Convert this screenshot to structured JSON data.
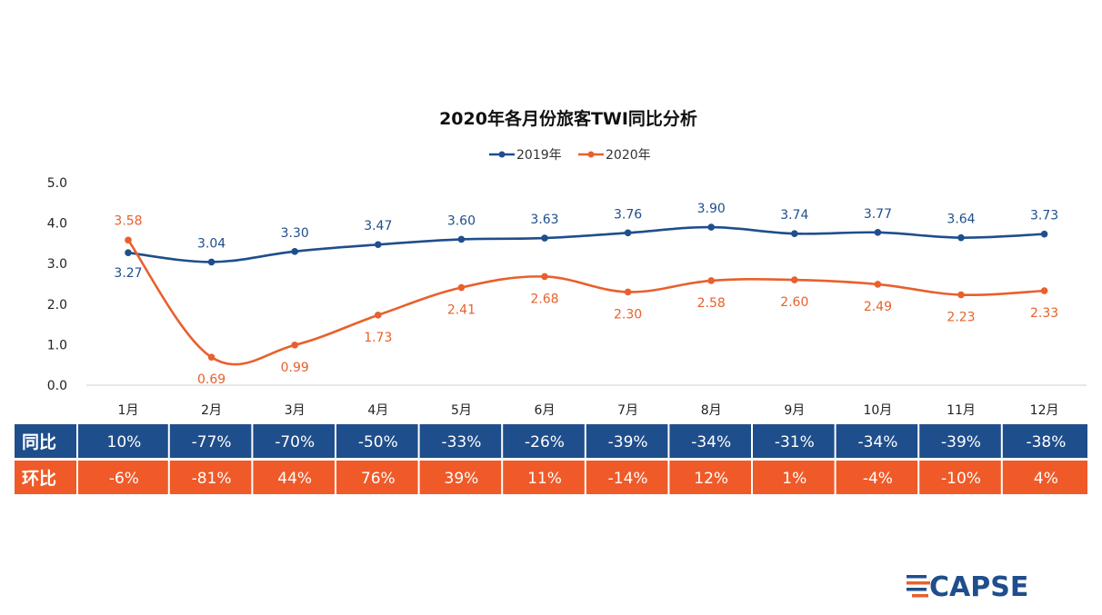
{
  "chart_data": {
    "type": "line",
    "title": "2020年各月份旅客TWI同比分析",
    "categories": [
      "1月",
      "2月",
      "3月",
      "4月",
      "5月",
      "6月",
      "7月",
      "8月",
      "9月",
      "10月",
      "11月",
      "12月"
    ],
    "ylim": [
      0,
      5
    ],
    "yticks": [
      "0.0",
      "1.0",
      "2.0",
      "3.0",
      "4.0",
      "5.0"
    ],
    "legend_position": "top-center",
    "grid": false,
    "series": [
      {
        "name": "2019年",
        "color": "#1f4e8c",
        "values": [
          3.27,
          3.04,
          3.3,
          3.47,
          3.6,
          3.63,
          3.76,
          3.9,
          3.74,
          3.77,
          3.64,
          3.73
        ],
        "labels": [
          "3.27",
          "3.04",
          "3.30",
          "3.47",
          "3.60",
          "3.63",
          "3.76",
          "3.90",
          "3.74",
          "3.77",
          "3.64",
          "3.73"
        ]
      },
      {
        "name": "2020年",
        "color": "#e8602c",
        "values": [
          3.58,
          0.69,
          0.99,
          1.73,
          2.41,
          2.68,
          2.3,
          2.58,
          2.6,
          2.49,
          2.23,
          2.33
        ],
        "labels": [
          "3.58",
          "0.69",
          "0.99",
          "1.73",
          "2.41",
          "2.68",
          "2.30",
          "2.58",
          "2.60",
          "2.49",
          "2.23",
          "2.33"
        ]
      }
    ]
  },
  "table": {
    "rows": [
      {
        "header": "同比",
        "color": "#1f4e8c",
        "cells": [
          "10%",
          "-77%",
          "-70%",
          "-50%",
          "-33%",
          "-26%",
          "-39%",
          "-34%",
          "-31%",
          "-34%",
          "-39%",
          "-38%"
        ]
      },
      {
        "header": "环比",
        "color": "#f05a28",
        "cells": [
          "-6%",
          "-81%",
          "44%",
          "76%",
          "39%",
          "11%",
          "-14%",
          "12%",
          "1%",
          "-4%",
          "-10%",
          "4%"
        ]
      }
    ]
  },
  "logo": {
    "text": "CAPSE"
  }
}
